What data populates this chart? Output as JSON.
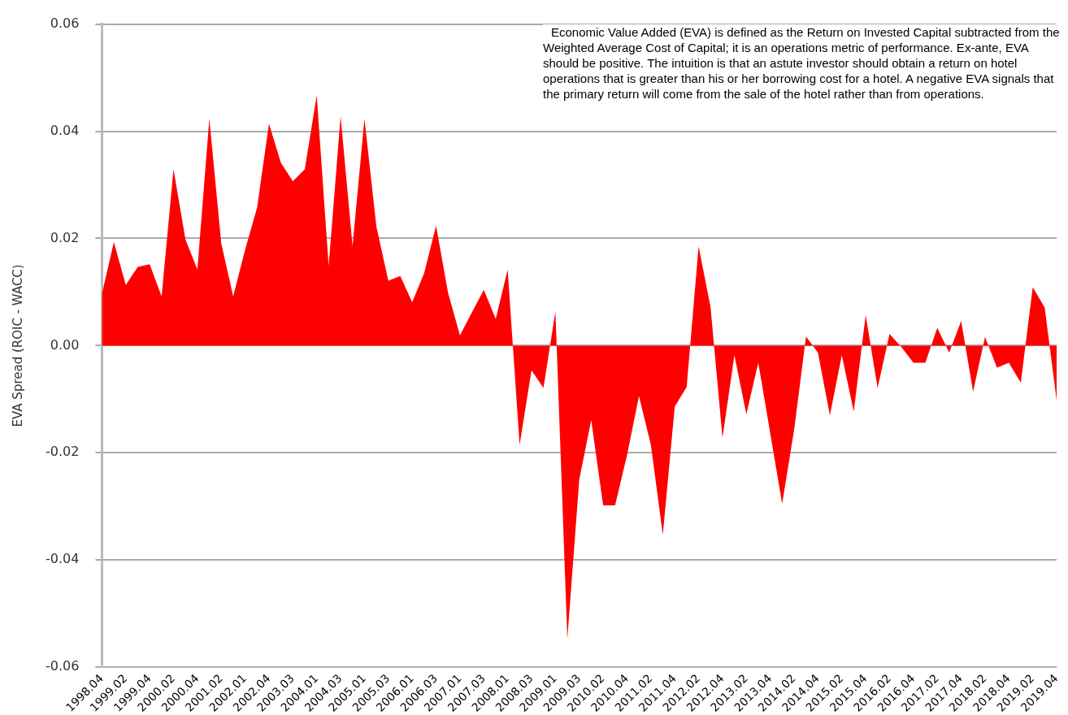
{
  "chart_data": {
    "type": "area",
    "ylabel": "EVA Spread (ROIC - WACC)",
    "categories": [
      "1998.04",
      null,
      "1999.02",
      null,
      "1999.04",
      null,
      "2000.02",
      null,
      "2000.04",
      null,
      "2001.02",
      null,
      "2002.01",
      null,
      "2002.04",
      null,
      "2003.03",
      null,
      "2004.01",
      null,
      "2004.03",
      null,
      "2005.01",
      null,
      "2005.03",
      null,
      "2006.01",
      null,
      "2006.03",
      null,
      "2007.01",
      null,
      "2007.03",
      null,
      "2008.01",
      null,
      "2008.03",
      null,
      "2009.01",
      null,
      "2009.03",
      null,
      "2010.02",
      null,
      "2010.04",
      null,
      "2011.02",
      null,
      "2011.04",
      null,
      "2012.02",
      null,
      "2012.04",
      null,
      "2013.02",
      null,
      "2013.04",
      null,
      "2014.02",
      null,
      "2014.04",
      null,
      "2015.02",
      null,
      "2015.04",
      null,
      "2016.02",
      null,
      "2016.04",
      null,
      "2017.02",
      null,
      "2017.04",
      null,
      "2018.02",
      null,
      "2018.04",
      null,
      "2019.02",
      null,
      "2019.04"
    ],
    "series": [
      {
        "color": "#ff0000",
        "values": [
          0.0097,
          0.0193,
          0.0113,
          0.0147,
          0.0152,
          0.0092,
          0.0329,
          0.0198,
          0.0142,
          0.0423,
          0.0191,
          0.0092,
          0.0179,
          0.0257,
          0.0414,
          0.0341,
          0.0307,
          0.0329,
          0.0467,
          0.0149,
          0.0428,
          0.0186,
          0.0423,
          0.0222,
          0.0121,
          0.013,
          0.0081,
          0.0135,
          0.0224,
          0.0099,
          0.0019,
          0.0062,
          0.0104,
          0.005,
          0.0142,
          -0.0185,
          -0.0046,
          -0.0079,
          0.0064,
          -0.0547,
          -0.025,
          -0.0139,
          -0.0298,
          -0.0298,
          -0.0205,
          -0.0094,
          -0.0185,
          -0.0353,
          -0.0114,
          -0.0077,
          0.0185,
          0.0072,
          -0.0172,
          -0.0018,
          -0.0128,
          -0.0032,
          -0.0163,
          -0.0295,
          -0.0158,
          0.0017,
          -0.0013,
          -0.013,
          -0.0018,
          -0.0123,
          0.0057,
          -0.0079,
          0.0022,
          -0.0003,
          -0.0032,
          -0.0032,
          0.0033,
          -0.0013,
          0.0046,
          -0.0086,
          0.0016,
          -0.0041,
          -0.0032,
          -0.0069,
          0.0109,
          0.0071,
          -0.0102
        ]
      }
    ],
    "ylim": [
      -0.06,
      0.06
    ],
    "yticks": [
      {
        "value": -0.06,
        "label": "-0.06"
      },
      {
        "value": -0.04,
        "label": "-0.04"
      },
      {
        "value": -0.02,
        "label": "-0.02"
      },
      {
        "value": 0,
        "label": "0.00"
      },
      {
        "value": 0.02,
        "label": "0.02"
      },
      {
        "value": 0.04,
        "label": "0.04"
      },
      {
        "value": 0.06,
        "label": "0.06"
      }
    ],
    "grid": "y",
    "legend": false,
    "marker": "none",
    "annotations": [
      "Economic Value Added (EVA) is defined as the Return on Invested Capital subtracted from the Weighted Average Cost of Capital; it is an operations metric of performance. Ex-ante, EVA should be positive. The intuition is that an astute investor should obtain a return on hotel operations that is greater than his or her borrowing cost for a hotel. A negative EVA signals that the primary return will come from the sale of the hotel rather than from operations."
    ]
  }
}
